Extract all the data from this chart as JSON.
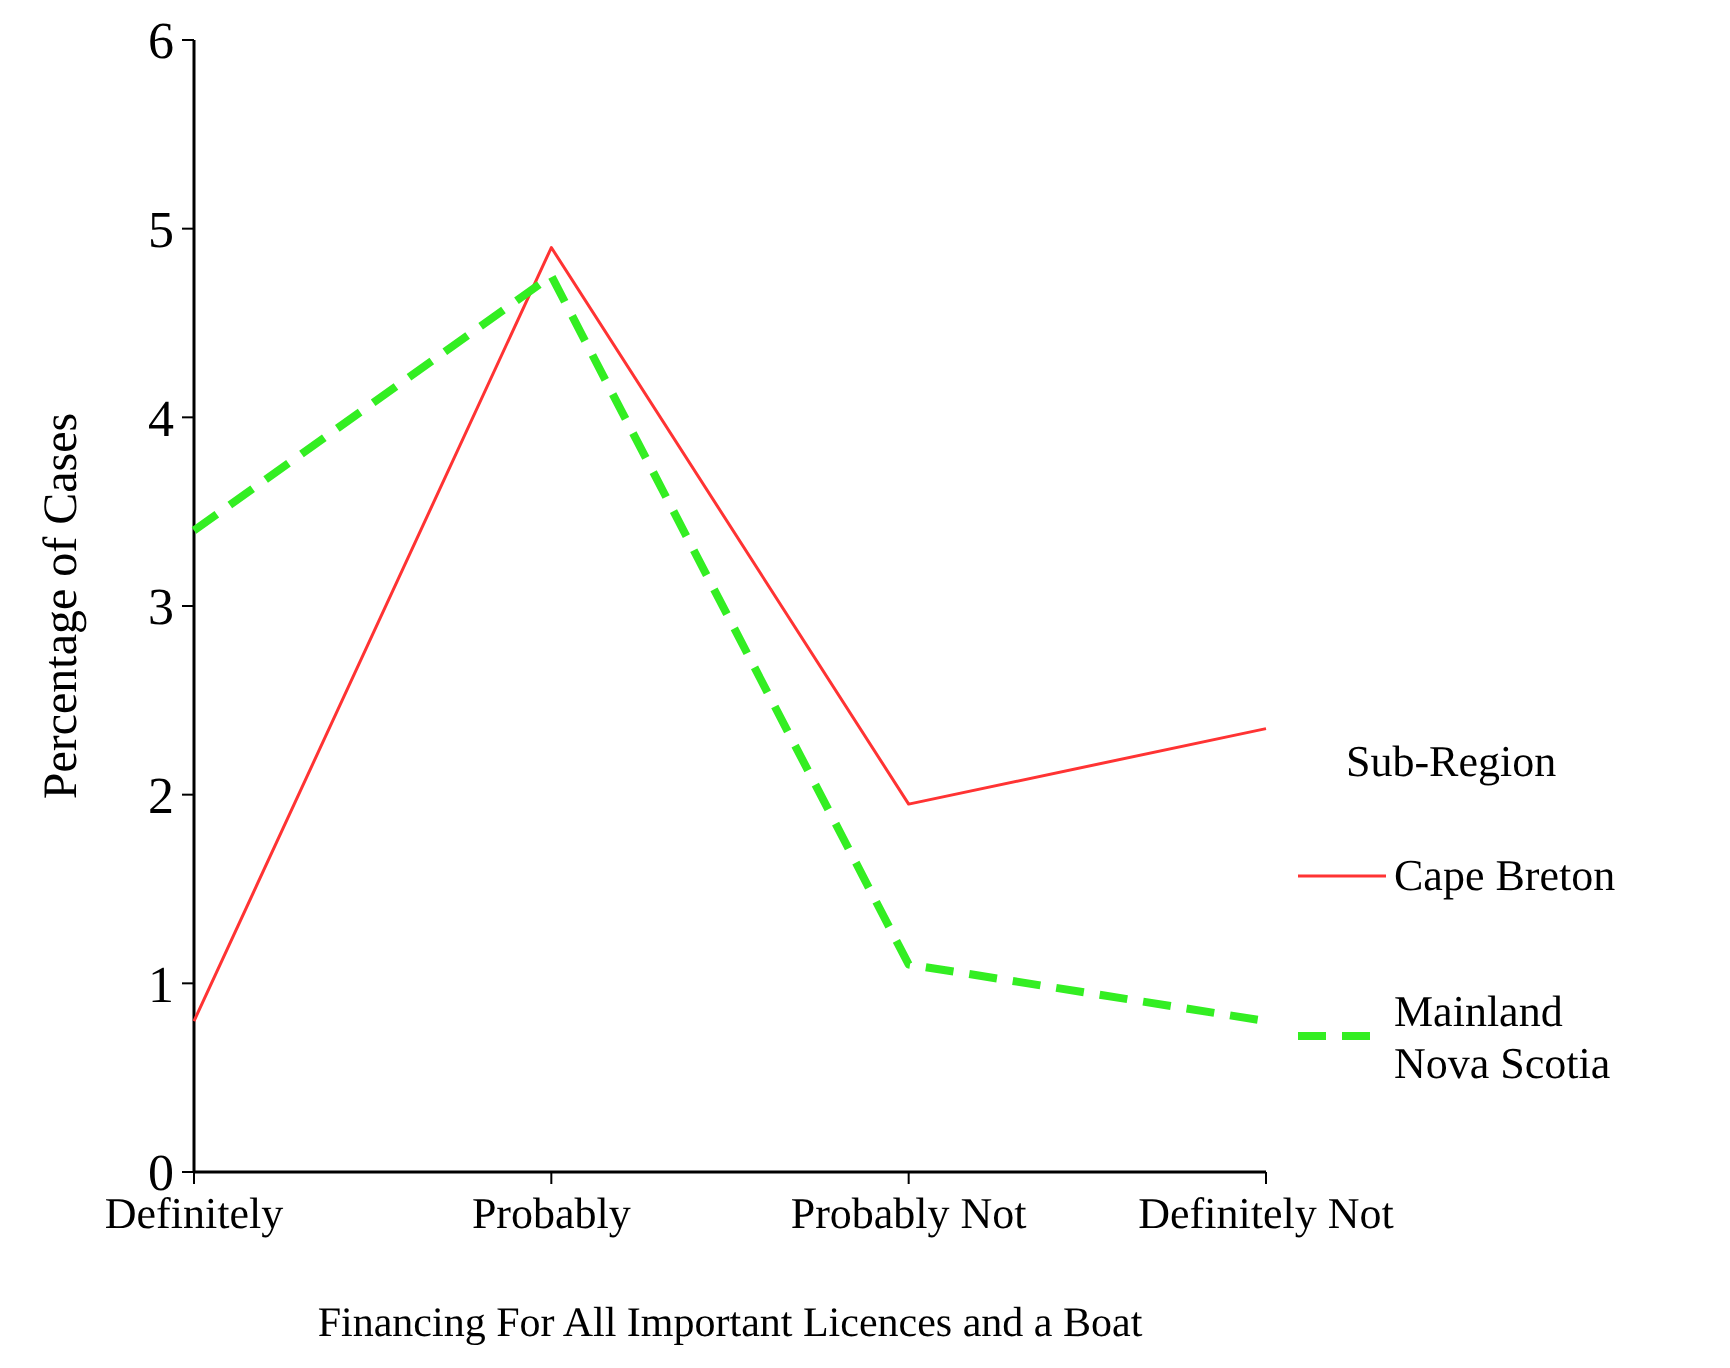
{
  "chart_data": {
    "type": "line",
    "xlabel": "Financing For All Important Licences and a Boat",
    "ylabel": "Percentage of Cases",
    "legend_title": "Sub-Region",
    "legend": "right",
    "categories": [
      "Definitely",
      "Probably",
      "Probably Not",
      "Definitely Not"
    ],
    "ylim": [
      0,
      6
    ],
    "yticks": [
      0,
      1,
      2,
      3,
      4,
      5,
      6
    ],
    "grid": false,
    "marker": "none",
    "series": [
      {
        "name": "Cape Breton",
        "color": "#ff3333",
        "line_style": "solid",
        "values": [
          0.8,
          4.9,
          1.95,
          2.35
        ]
      },
      {
        "name": "Mainland Nova Scotia",
        "color": "#33ee22",
        "line_style": "dashed",
        "values": [
          3.4,
          4.75,
          1.1,
          0.8
        ]
      }
    ]
  }
}
